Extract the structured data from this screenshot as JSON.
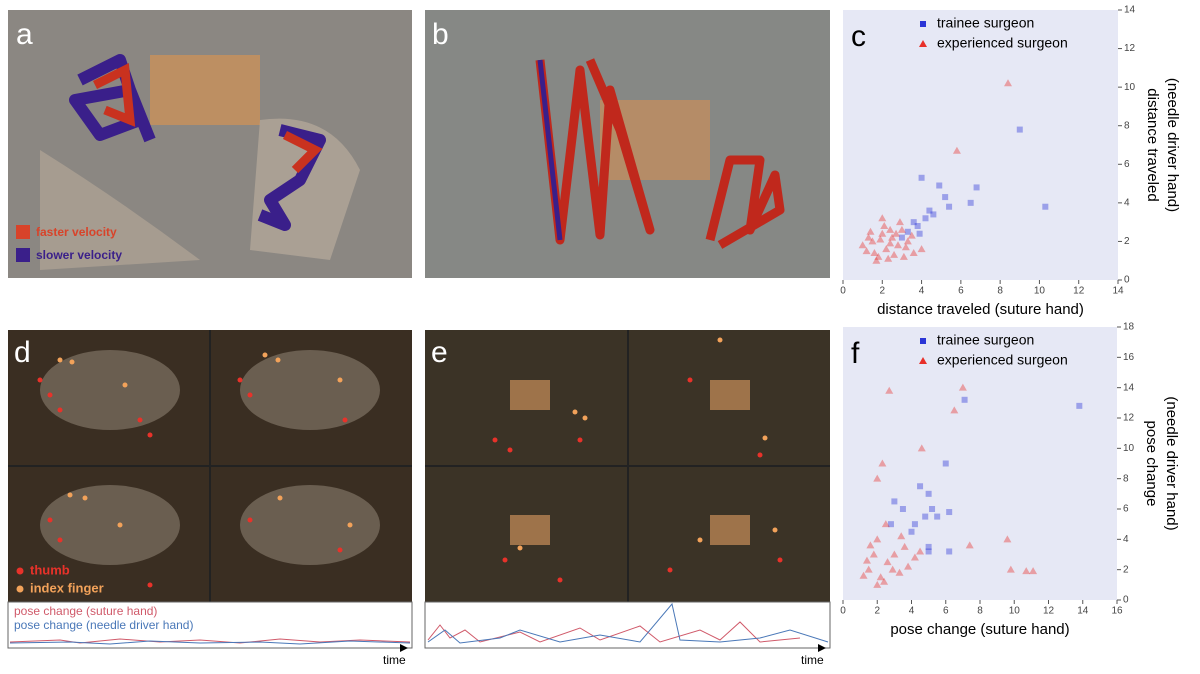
{
  "panels": [
    {
      "letter": "a",
      "legend": [
        "faster velocity",
        "slower velocity"
      ]
    },
    {
      "letter": "b"
    },
    {
      "letter": "d",
      "legend": [
        "thumb",
        "index finger"
      ],
      "series_labels": [
        "pose change (suture hand)",
        "pose change (needle driver hand)"
      ],
      "time_label": "time"
    },
    {
      "letter": "e",
      "time_label": "time"
    }
  ],
  "chart_data": [
    {
      "type": "scatter",
      "panel_label": "c",
      "xlabel": "distance traveled (suture hand)",
      "ylabel": [
        "distance traveled",
        "(needle driver hand)"
      ],
      "xlim": [
        0,
        14
      ],
      "ylim": [
        0,
        14
      ],
      "xticks": [
        0,
        2,
        4,
        6,
        8,
        10,
        12,
        14
      ],
      "yticks": [
        0,
        2,
        4,
        6,
        8,
        10,
        12,
        14
      ],
      "series": [
        {
          "name": "trainee surgeon",
          "color": "#2b35d6",
          "marker": "square",
          "x": [
            4.6,
            9.0,
            10.3,
            6.8,
            6.5,
            5.4,
            4.9,
            4.0,
            4.2,
            3.8,
            3.3,
            3.6,
            4.4,
            3.0,
            3.9,
            5.2
          ],
          "values": [
            3.4,
            7.8,
            3.8,
            4.8,
            4.0,
            3.8,
            4.9,
            5.3,
            3.2,
            2.8,
            2.5,
            3.0,
            3.6,
            2.2,
            2.4,
            4.3
          ]
        },
        {
          "name": "experienced surgeon",
          "color": "#e8302a",
          "marker": "triangle",
          "x": [
            8.4,
            5.8,
            2.4,
            1.2,
            1.5,
            1.8,
            2.0,
            2.2,
            2.5,
            2.8,
            3.0,
            3.3,
            3.6,
            1.4,
            1.7,
            2.1,
            2.6,
            2.9,
            3.2,
            1.0,
            1.9,
            2.3,
            2.7,
            3.5,
            4.0,
            1.6,
            2.0,
            3.1,
            1.3,
            2.4
          ],
          "values": [
            10.2,
            6.7,
            1.9,
            1.5,
            2.0,
            1.2,
            2.4,
            1.6,
            2.2,
            1.8,
            2.6,
            2.0,
            1.4,
            2.5,
            1.0,
            2.8,
            1.3,
            3.0,
            1.7,
            1.8,
            2.1,
            1.1,
            2.4,
            2.3,
            1.6,
            1.4,
            3.2,
            1.2,
            2.2,
            2.6
          ]
        }
      ]
    },
    {
      "type": "scatter",
      "panel_label": "f",
      "xlabel": "pose change (suture hand)",
      "ylabel": [
        "pose change",
        "(needle driver hand)"
      ],
      "xlim": [
        0,
        16
      ],
      "ylim": [
        0,
        18
      ],
      "xticks": [
        0,
        2,
        4,
        6,
        8,
        10,
        12,
        14,
        16
      ],
      "yticks": [
        0,
        2,
        4,
        6,
        8,
        10,
        12,
        14,
        16,
        18
      ],
      "series": [
        {
          "name": "trainee surgeon",
          "color": "#2b35d6",
          "marker": "square",
          "x": [
            5.2,
            13.8,
            7.1,
            6.0,
            4.5,
            5.0,
            3.0,
            3.5,
            5.5,
            6.2,
            5.0,
            5.0,
            6.2,
            4.2,
            2.8,
            4.0,
            4.8
          ],
          "values": [
            6.0,
            12.8,
            13.2,
            9.0,
            7.5,
            7.0,
            6.5,
            6.0,
            5.5,
            5.8,
            3.5,
            3.2,
            3.2,
            5.0,
            5.0,
            4.5,
            5.5
          ]
        },
        {
          "name": "experienced surgeon",
          "color": "#e8302a",
          "marker": "triangle",
          "x": [
            3.6,
            7.0,
            6.5,
            2.7,
            2.3,
            4.6,
            9.6,
            2.0,
            7.4,
            10.7,
            11.1,
            9.8,
            2.5,
            2.0,
            1.5,
            1.8,
            2.2,
            2.6,
            3.0,
            3.3,
            3.8,
            4.2,
            1.2,
            1.6,
            2.4,
            2.9,
            3.4,
            4.5,
            1.4,
            2.0
          ],
          "values": [
            3.5,
            14.0,
            12.5,
            13.8,
            9.0,
            10.0,
            4.0,
            8.0,
            3.6,
            1.9,
            1.9,
            2.0,
            5.0,
            4.0,
            2.0,
            3.0,
            1.5,
            2.5,
            3.0,
            1.8,
            2.2,
            2.8,
            1.6,
            3.6,
            1.2,
            2.0,
            4.2,
            3.2,
            2.6,
            1.0
          ]
        }
      ]
    }
  ]
}
